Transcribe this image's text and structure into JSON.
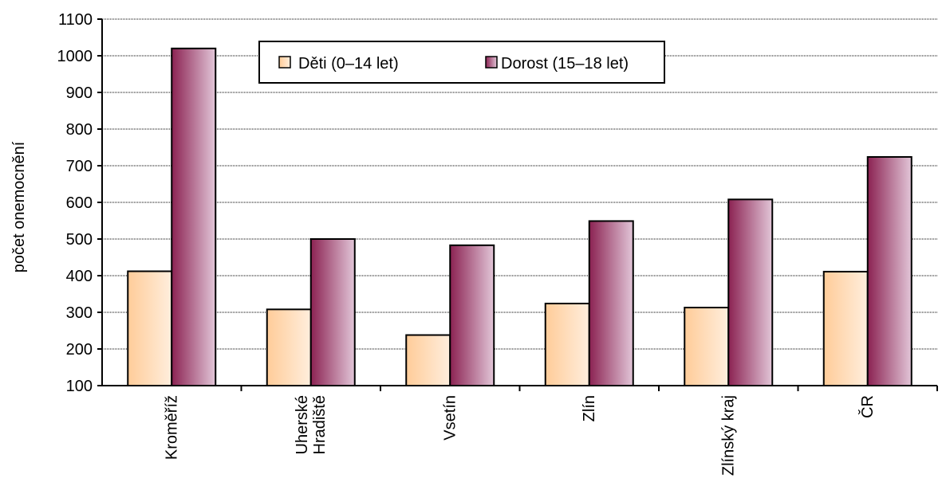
{
  "chart_data": {
    "type": "bar",
    "title": "",
    "xlabel": "",
    "ylabel": "počet onemocnění",
    "ylim": [
      100,
      1100
    ],
    "yticks": [
      100,
      200,
      300,
      400,
      500,
      600,
      700,
      800,
      900,
      1000,
      1100
    ],
    "grid": "horizontal, dotted",
    "legend_position": "top",
    "categories": [
      [
        "Kroměříž"
      ],
      [
        "Uherské",
        "Hradiště"
      ],
      [
        "Vsetín"
      ],
      [
        "Zlín"
      ],
      [
        "Zlínský kraj"
      ],
      [
        "ČR"
      ]
    ],
    "series": [
      {
        "name": "Děti (0–14 let)",
        "values": [
          412,
          308,
          238,
          324,
          313,
          411
        ],
        "colors": [
          "#ffcc99",
          "#ffeedd"
        ]
      },
      {
        "name": "Dorost (15–18 let)",
        "values": [
          1020,
          500,
          483,
          549,
          608,
          724
        ],
        "colors": [
          "#8b2252",
          "#e2c6d8"
        ]
      }
    ]
  }
}
